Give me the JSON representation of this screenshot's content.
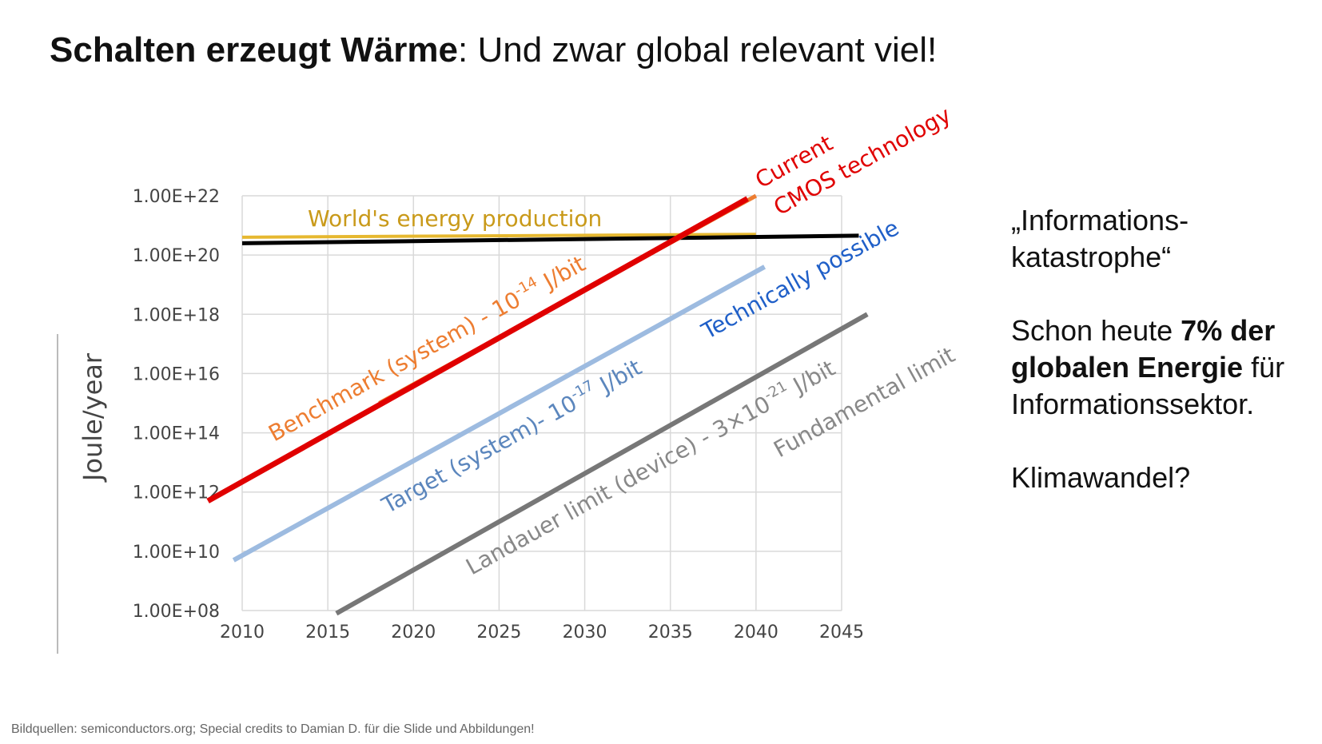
{
  "slide": {
    "title_bold": "Schalten erzeugt Wärme",
    "title_rest": ": Und zwar global relevant viel!",
    "side_text": {
      "quote": "„Informations-katastrophe“",
      "p2_prefix": "Schon heute ",
      "p2_bold": "7% der globalen Energie",
      "p2_suffix": " für Informationssektor.",
      "p3": "Klimawandel?"
    },
    "footer": "Bildquellen: semiconductors.org; Special credits to Damian D. für die Slide und Abbildungen!"
  },
  "chart_data": {
    "type": "line",
    "ylabel": "Joule/year",
    "yscale": "log",
    "ylim": [
      100000000.0,
      1e+22
    ],
    "xlim": [
      2010,
      2045
    ],
    "x_ticks": [
      "2010",
      "2015",
      "2020",
      "2025",
      "2030",
      "2035",
      "2040",
      "2045"
    ],
    "y_ticks": [
      "1.00E+08",
      "1.00E+10",
      "1.00E+12",
      "1.00E+14",
      "1.00E+16",
      "1.00E+18",
      "1.00E+20",
      "1.00E+22"
    ],
    "grid": true,
    "series": [
      {
        "name": "World's energy production",
        "color": "#e6b830",
        "x": [
          2010,
          2040
        ],
        "y": [
          4e+20,
          5e+20
        ]
      },
      {
        "name": "",
        "color": "#000000",
        "x": [
          2010,
          2046
        ],
        "y": [
          2.5e+20,
          4.5e+20
        ]
      },
      {
        "name": "Benchmark (system) - 10-14 J/bit",
        "color": "#ed7d31",
        "x": [
          2018,
          2040
        ],
        "y": [
          1000000000000000.0,
          1e+22
        ]
      },
      {
        "name": "Current CMOS technology",
        "color": "#e00000",
        "x": [
          2008,
          2039.5
        ],
        "y": [
          500000000000.0,
          8e+21
        ]
      },
      {
        "name": "Target (system)- 10-17 J/bit",
        "color": "#9dbbe0",
        "x": [
          2009.5,
          2040.5
        ],
        "y": [
          5000000000.0,
          4e+19
        ]
      },
      {
        "name": "Landauer limit (device) - 3×10-21 J/bit",
        "color": "#777777",
        "x": [
          2015.5,
          2046.5
        ],
        "y": [
          80000000.0,
          1e+18
        ]
      }
    ],
    "annotations": [
      {
        "text_parts": [
          "World's energy production"
        ],
        "color": "#c99a1a"
      },
      {
        "text_parts": [
          "Benchmark (system) - 10",
          "-14",
          " J/bit"
        ],
        "color": "#ed7d31"
      },
      {
        "text_parts": [
          "Current"
        ],
        "color": "#e00000"
      },
      {
        "text_parts": [
          "CMOS technology"
        ],
        "color": "#e00000"
      },
      {
        "text_parts": [
          "Technically possible"
        ],
        "color": "#1f5fc8"
      },
      {
        "text_parts": [
          "Target (system)- 10",
          "-17",
          " J/bit"
        ],
        "color": "#5b86bd"
      },
      {
        "text_parts": [
          "Landauer limit (device) - 3×10",
          "-21",
          " J/bit"
        ],
        "color": "#888888"
      },
      {
        "text_parts": [
          "Fundamental limit"
        ],
        "color": "#888888"
      }
    ]
  }
}
